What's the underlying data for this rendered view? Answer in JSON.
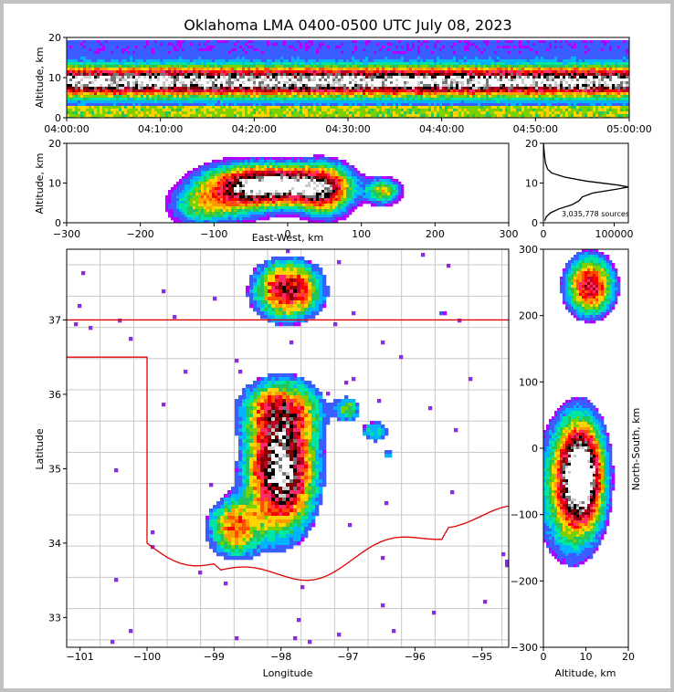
{
  "chart_data": {
    "type": "heatmap",
    "title": "Oklahoma LMA 0400-0500 UTC July 08, 2023",
    "colormap": [
      "#8a2be2",
      "#b000ff",
      "#3b5cff",
      "#00b4ff",
      "#00e6a0",
      "#22c55e",
      "#7ad000",
      "#ffd400",
      "#ff9a00",
      "#ff5000",
      "#ff0000",
      "#ff2a6a",
      "#c0002a",
      "#800000",
      "#000000",
      "#777777",
      "#cccccc",
      "#ffffff"
    ],
    "time_height": {
      "ylabel": "Altitude, km",
      "ylim": [
        0,
        20
      ],
      "yticks": [
        "0",
        "10",
        "20"
      ],
      "xticks": [
        "04:00:00",
        "04:10:00",
        "04:20:00",
        "04:30:00",
        "04:40:00",
        "04:50:00",
        "05:00:00"
      ]
    },
    "ew_height": {
      "xlabel": "East-West, km",
      "ylabel": "Altitude, km",
      "xlim": [
        -300,
        300
      ],
      "ylim": [
        0,
        20
      ],
      "xticks": [
        "−300",
        "−200",
        "−100",
        "0",
        "100",
        "200",
        "300"
      ],
      "yticks": [
        "0",
        "10",
        "20"
      ]
    },
    "histogram": {
      "annotation": "3,035,778 sources",
      "xlim": [
        0,
        120000
      ],
      "xticks": [
        "0",
        "100000"
      ],
      "yticks": [
        "0",
        "10",
        "20"
      ],
      "profile": [
        {
          "alt": 0.5,
          "count": 2000
        },
        {
          "alt": 1.5,
          "count": 4000
        },
        {
          "alt": 2.5,
          "count": 10000
        },
        {
          "alt": 3.5,
          "count": 22000
        },
        {
          "alt": 4.5,
          "count": 40000
        },
        {
          "alt": 5.5,
          "count": 50000
        },
        {
          "alt": 6.5,
          "count": 55000
        },
        {
          "alt": 7.5,
          "count": 70000
        },
        {
          "alt": 8.5,
          "count": 105000
        },
        {
          "alt": 9.0,
          "count": 120000
        },
        {
          "alt": 9.5,
          "count": 105000
        },
        {
          "alt": 10.5,
          "count": 60000
        },
        {
          "alt": 11.5,
          "count": 30000
        },
        {
          "alt": 12.5,
          "count": 12000
        },
        {
          "alt": 13.5,
          "count": 6000
        },
        {
          "alt": 15,
          "count": 3000
        },
        {
          "alt": 17,
          "count": 1500
        },
        {
          "alt": 19,
          "count": 500
        },
        {
          "alt": 20,
          "count": 200
        }
      ]
    },
    "plan_view": {
      "xlabel": "Longitude",
      "ylabel": "Latitude",
      "xlim": [
        -101.2,
        -94.6
      ],
      "ylim": [
        32.6,
        37.95
      ],
      "xticks": [
        "−101",
        "−100",
        "−99",
        "−98",
        "−97",
        "−96",
        "−95"
      ],
      "yticks": [
        "33",
        "34",
        "35",
        "36",
        "37"
      ]
    },
    "ns_height": {
      "xlabel": "Altitude, km",
      "ylabel": "North-South, km",
      "xlim": [
        0,
        20
      ],
      "ylim": [
        -300,
        300
      ],
      "xticks": [
        "0",
        "10",
        "20"
      ],
      "yticks": [
        "−300",
        "−200",
        "−100",
        "0",
        "100",
        "200",
        "300"
      ]
    }
  }
}
